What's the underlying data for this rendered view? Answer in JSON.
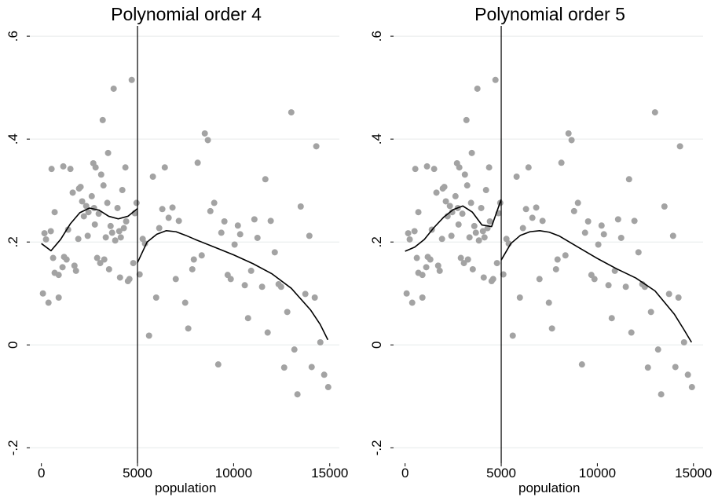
{
  "chart_data": [
    {
      "type": "scatter",
      "title": "Polynomial order 4",
      "xlabel": "population",
      "xlim": [
        -600,
        15500
      ],
      "ylim": [
        -0.23,
        0.62
      ],
      "xticks": [
        0,
        5000,
        10000,
        15000
      ],
      "yticks": [
        {
          "value": -0.2,
          "label": "-.2"
        },
        0,
        {
          "value": 0.2,
          "label": ".2"
        },
        {
          "value": 0.4,
          "label": ".4"
        },
        {
          "value": 0.6,
          "label": ".6"
        }
      ],
      "grid": true,
      "vline": 5000,
      "vline_color": "#000000",
      "series": [
        {
          "type": "scatter",
          "color": "#a3a3a3",
          "x": [
            80,
            160,
            240,
            370,
            490,
            530,
            610,
            690,
            690,
            900,
            900,
            1100,
            1140,
            1180,
            1310,
            1390,
            1510,
            1630,
            1720,
            1800,
            1920,
            1960,
            2040,
            2120,
            2210,
            2330,
            2410,
            2450,
            2620,
            2700,
            2740,
            2780,
            2820,
            2900,
            2980,
            3060,
            3110,
            3190,
            3230,
            3270,
            3350,
            3430,
            3470,
            3520,
            3600,
            3680,
            3760,
            3840,
            3960,
            4050,
            4130,
            4090,
            4210,
            4290,
            4370,
            4410,
            4500,
            4580,
            4700,
            4780,
            4860,
            4950,
            5110,
            5270,
            5390,
            5600,
            5800,
            5970,
            6130,
            6290,
            6420,
            6620,
            6820,
            6990,
            7150,
            7480,
            7640,
            7850,
            7930,
            8130,
            8340,
            8500,
            8660,
            8790,
            8990,
            9200,
            9360,
            9520,
            9690,
            9850,
            10050,
            10220,
            10340,
            10580,
            10750,
            10910,
            11080,
            11240,
            11480,
            11650,
            11770,
            11930,
            12140,
            12340,
            12470,
            12630,
            12790,
            13000,
            13160,
            13320,
            13490,
            13730,
            13940,
            14060,
            14220,
            14300,
            14510,
            14710,
            14920
          ],
          "values": [
            0.1,
            0.217,
            0.205,
            0.082,
            0.221,
            0.342,
            0.169,
            0.258,
            0.14,
            0.092,
            0.136,
            0.151,
            0.347,
            0.171,
            0.166,
            0.224,
            0.342,
            0.296,
            0.154,
            0.144,
            0.206,
            0.304,
            0.307,
            0.279,
            0.25,
            0.27,
            0.212,
            0.258,
            0.289,
            0.353,
            0.266,
            0.234,
            0.345,
            0.169,
            0.255,
            0.159,
            0.331,
            0.437,
            0.31,
            0.166,
            0.209,
            0.276,
            0.373,
            0.147,
            0.231,
            0.218,
            0.498,
            0.203,
            0.266,
            0.221,
            0.209,
            0.131,
            0.301,
            0.227,
            0.345,
            0.24,
            0.124,
            0.128,
            0.515,
            0.159,
            0.256,
            0.276,
            0.137,
            0.206,
            0.197,
            0.018,
            0.327,
            0.092,
            0.227,
            0.264,
            0.345,
            0.247,
            0.267,
            0.128,
            0.241,
            0.082,
            0.032,
            0.147,
            0.166,
            0.354,
            0.174,
            0.411,
            0.398,
            0.26,
            0.276,
            -0.038,
            0.218,
            0.24,
            0.136,
            0.128,
            0.195,
            0.232,
            0.215,
            0.116,
            0.052,
            0.144,
            0.244,
            0.208,
            0.113,
            0.322,
            0.024,
            0.241,
            0.18,
            0.118,
            0.113,
            -0.044,
            0.064,
            0.452,
            -0.009,
            -0.096,
            0.269,
            0.099,
            0.212,
            -0.043,
            0.092,
            0.386,
            0.005,
            -0.058,
            -0.082
          ]
        },
        {
          "type": "line",
          "color": "#000000",
          "x": [
            0,
            500,
            1000,
            1500,
            2000,
            2500,
            3000,
            3500,
            4000,
            4500,
            5000
          ],
          "values": [
            0.197,
            0.183,
            0.205,
            0.235,
            0.257,
            0.266,
            0.262,
            0.25,
            0.245,
            0.25,
            0.265
          ]
        },
        {
          "type": "line",
          "color": "#000000",
          "x": [
            5000,
            5500,
            6000,
            6500,
            7000,
            7500,
            8000,
            9000,
            10000,
            11000,
            12000,
            13000,
            14000,
            14500,
            14900
          ],
          "values": [
            0.16,
            0.2,
            0.215,
            0.222,
            0.22,
            0.213,
            0.205,
            0.19,
            0.175,
            0.158,
            0.138,
            0.11,
            0.068,
            0.04,
            0.01
          ]
        }
      ]
    },
    {
      "type": "scatter",
      "title": "Polynomial order 5",
      "xlabel": "population",
      "xlim": [
        -600,
        15500
      ],
      "ylim": [
        -0.23,
        0.62
      ],
      "xticks": [
        0,
        5000,
        10000,
        15000
      ],
      "yticks": [
        {
          "value": -0.2,
          "label": "-.2"
        },
        0,
        {
          "value": 0.2,
          "label": ".2"
        },
        {
          "value": 0.4,
          "label": ".4"
        },
        {
          "value": 0.6,
          "label": ".6"
        }
      ],
      "grid": true,
      "vline": 5000,
      "vline_color": "#000000",
      "series": [
        {
          "type": "scatter",
          "color": "#a3a3a3",
          "x": [
            80,
            160,
            240,
            370,
            490,
            530,
            610,
            690,
            690,
            900,
            900,
            1100,
            1140,
            1180,
            1310,
            1390,
            1510,
            1630,
            1720,
            1800,
            1920,
            1960,
            2040,
            2120,
            2210,
            2330,
            2410,
            2450,
            2620,
            2700,
            2740,
            2780,
            2820,
            2900,
            2980,
            3060,
            3110,
            3190,
            3230,
            3270,
            3350,
            3430,
            3470,
            3520,
            3600,
            3680,
            3760,
            3840,
            3960,
            4050,
            4130,
            4090,
            4210,
            4290,
            4370,
            4410,
            4500,
            4580,
            4700,
            4780,
            4860,
            4950,
            5110,
            5270,
            5390,
            5600,
            5800,
            5970,
            6130,
            6290,
            6420,
            6620,
            6820,
            6990,
            7150,
            7480,
            7640,
            7850,
            7930,
            8130,
            8340,
            8500,
            8660,
            8790,
            8990,
            9200,
            9360,
            9520,
            9690,
            9850,
            10050,
            10220,
            10340,
            10580,
            10750,
            10910,
            11080,
            11240,
            11480,
            11650,
            11770,
            11930,
            12140,
            12340,
            12470,
            12630,
            12790,
            13000,
            13160,
            13320,
            13490,
            13730,
            13940,
            14060,
            14220,
            14300,
            14510,
            14710,
            14920
          ],
          "values": [
            0.1,
            0.217,
            0.205,
            0.082,
            0.221,
            0.342,
            0.169,
            0.258,
            0.14,
            0.092,
            0.136,
            0.151,
            0.347,
            0.171,
            0.166,
            0.224,
            0.342,
            0.296,
            0.154,
            0.144,
            0.206,
            0.304,
            0.307,
            0.279,
            0.25,
            0.27,
            0.212,
            0.258,
            0.289,
            0.353,
            0.266,
            0.234,
            0.345,
            0.169,
            0.255,
            0.159,
            0.331,
            0.437,
            0.31,
            0.166,
            0.209,
            0.276,
            0.373,
            0.147,
            0.231,
            0.218,
            0.498,
            0.203,
            0.266,
            0.221,
            0.209,
            0.131,
            0.301,
            0.227,
            0.345,
            0.24,
            0.124,
            0.128,
            0.515,
            0.159,
            0.256,
            0.276,
            0.137,
            0.206,
            0.197,
            0.018,
            0.327,
            0.092,
            0.227,
            0.264,
            0.345,
            0.247,
            0.267,
            0.128,
            0.241,
            0.082,
            0.032,
            0.147,
            0.166,
            0.354,
            0.174,
            0.411,
            0.398,
            0.26,
            0.276,
            -0.038,
            0.218,
            0.24,
            0.136,
            0.128,
            0.195,
            0.232,
            0.215,
            0.116,
            0.052,
            0.144,
            0.244,
            0.208,
            0.113,
            0.322,
            0.024,
            0.241,
            0.18,
            0.118,
            0.113,
            -0.044,
            0.064,
            0.452,
            -0.009,
            -0.096,
            0.269,
            0.099,
            0.212,
            -0.043,
            0.092,
            0.386,
            0.005,
            -0.058,
            -0.082
          ]
        },
        {
          "type": "line",
          "color": "#000000",
          "x": [
            0,
            500,
            1000,
            1500,
            2000,
            2500,
            3000,
            3500,
            4000,
            4500,
            5000
          ],
          "values": [
            0.182,
            0.19,
            0.205,
            0.228,
            0.248,
            0.263,
            0.27,
            0.258,
            0.233,
            0.23,
            0.283
          ]
        },
        {
          "type": "line",
          "color": "#000000",
          "x": [
            5000,
            5500,
            6000,
            6500,
            7000,
            7500,
            8000,
            9000,
            10000,
            11000,
            12000,
            13000,
            14000,
            14500,
            14900
          ],
          "values": [
            0.165,
            0.197,
            0.213,
            0.22,
            0.222,
            0.219,
            0.212,
            0.19,
            0.168,
            0.148,
            0.13,
            0.105,
            0.06,
            0.03,
            0.005
          ]
        }
      ]
    }
  ]
}
